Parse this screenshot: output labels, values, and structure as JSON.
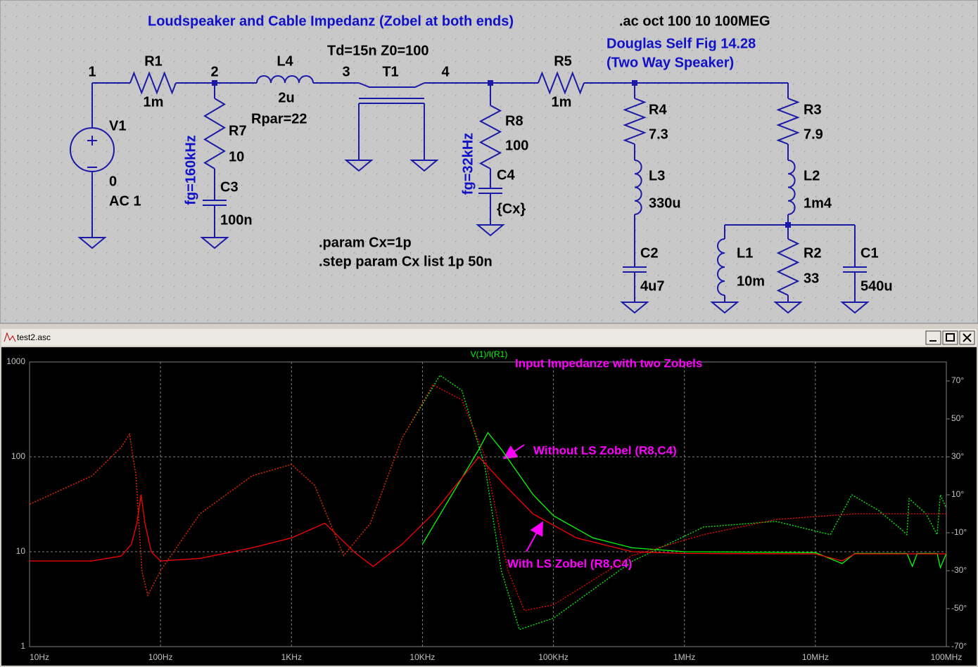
{
  "schematic": {
    "title": "Loudspeaker and Cable Impedanz (Zobel at both ends)",
    "analysis": ".ac oct 100 10 100MEG",
    "reference": [
      "Douglas Self Fig 14.28",
      "(Two Way Speaker)"
    ],
    "tline": "Td=15n Z0=100",
    "nodes": [
      "1",
      "2",
      "3",
      "4"
    ],
    "components": [
      {
        "ref": "R1",
        "value": "1m"
      },
      {
        "ref": "L4",
        "value": "2u",
        "extra": "Rpar=22"
      },
      {
        "ref": "T1"
      },
      {
        "ref": "R5",
        "value": "1m"
      },
      {
        "ref": "V1",
        "value": "0",
        "extra": "AC 1"
      },
      {
        "ref": "R7",
        "value": "10"
      },
      {
        "ref": "C3",
        "value": "100n"
      },
      {
        "ref": "R8",
        "value": "100"
      },
      {
        "ref": "C4",
        "value": "{Cx}"
      },
      {
        "ref": "R4",
        "value": "7.3"
      },
      {
        "ref": "L3",
        "value": "330u"
      },
      {
        "ref": "C2",
        "value": "4u7"
      },
      {
        "ref": "R3",
        "value": "7.9"
      },
      {
        "ref": "L2",
        "value": "1m4"
      },
      {
        "ref": "L1",
        "value": "10m"
      },
      {
        "ref": "R2",
        "value": "33"
      },
      {
        "ref": "C1",
        "value": "540u"
      }
    ],
    "zobel_labels": [
      "fg=160kHz",
      "fg=32kHz"
    ],
    "directives": [
      ".param Cx=1p",
      ".step param Cx list 1p 50n"
    ]
  },
  "window": {
    "title": "test2.asc"
  },
  "chart_data": {
    "type": "line",
    "trace_label": "V(1)/I(R1)",
    "title": "Input Impedanze with two Zobels",
    "annotations": [
      "Without LS Zobel (R8,C4)",
      "With LS Zobel (R8,C4)"
    ],
    "x_log": true,
    "y_log": true,
    "grid": true,
    "xlim": [
      10,
      100000000
    ],
    "ylim": [
      1,
      1000
    ],
    "y2lim": [
      -70,
      80
    ],
    "xticks": [
      {
        "value": 10,
        "label": "10Hz"
      },
      {
        "value": 100,
        "label": "100Hz"
      },
      {
        "value": 1000,
        "label": "1KHz"
      },
      {
        "value": 10000,
        "label": "10KHz"
      },
      {
        "value": 100000,
        "label": "100KHz"
      },
      {
        "value": 1000000,
        "label": "1MHz"
      },
      {
        "value": 10000000,
        "label": "10MHz"
      },
      {
        "value": 100000000,
        "label": "100MHz"
      }
    ],
    "yticks": [
      1,
      10,
      100,
      1000
    ],
    "y2ticks": [
      {
        "value": -70,
        "label": "-70°"
      },
      {
        "value": -50,
        "label": "-50°"
      },
      {
        "value": -30,
        "label": "-30°"
      },
      {
        "value": -10,
        "label": "-10°"
      },
      {
        "value": 10,
        "label": "10°"
      },
      {
        "value": 30,
        "label": "30°"
      },
      {
        "value": 50,
        "label": "50°"
      },
      {
        "value": 70,
        "label": "70°"
      }
    ],
    "series": [
      {
        "color": "#00ff00",
        "dash": true,
        "axis": "y2",
        "x": [
          10,
          30,
          50,
          58,
          65,
          72,
          80,
          100,
          200,
          500,
          1000,
          1500,
          2500,
          4000,
          7000,
          13600,
          20000,
          30000,
          40000,
          55000,
          100000,
          400000,
          1400000,
          5000000,
          13000000,
          19000000,
          30000000,
          45000000,
          50000000,
          52000000,
          70000000,
          85000000,
          90000000,
          100000000
        ],
        "values": [
          5,
          20,
          35,
          42,
          20,
          -30,
          -43,
          -30,
          0,
          20,
          26,
          15,
          -22,
          -5,
          40,
          73,
          65,
          25,
          -30,
          -61,
          -55,
          -25,
          -7,
          -4,
          -11,
          10,
          2,
          -8,
          -11,
          8,
          0,
          -11,
          10,
          3
        ]
      },
      {
        "color": "#00ff00",
        "dash": false,
        "axis": "y",
        "x": [
          10000,
          20000,
          27000,
          31600,
          40000,
          70000,
          100000,
          200000,
          400000,
          1000000,
          10000000,
          16000000,
          20000000,
          50000000,
          55000000,
          60000000,
          85000000,
          90000000,
          100000000
        ],
        "values": [
          12,
          60,
          120,
          180,
          120,
          40,
          24,
          14,
          11,
          10,
          9.8,
          7.5,
          9.6,
          9.6,
          7,
          9.6,
          9.6,
          6.8,
          9.6
        ]
      },
      {
        "color": "#ff0000",
        "dash": true,
        "axis": "y2",
        "x": [
          10,
          30,
          50,
          58,
          65,
          72,
          80,
          100,
          200,
          500,
          1000,
          1500,
          2500,
          4000,
          7000,
          12000,
          20000,
          30000,
          45000,
          60000,
          100000,
          400000,
          1400000,
          5000000,
          20000000,
          100000000
        ],
        "values": [
          5,
          20,
          35,
          42,
          20,
          -30,
          -43,
          -30,
          0,
          20,
          26,
          15,
          -22,
          -5,
          40,
          68,
          60,
          30,
          -30,
          -51,
          -48,
          -22,
          -11,
          -3,
          0,
          0
        ]
      },
      {
        "color": "#ff0000",
        "dash": false,
        "axis": "y",
        "x": [
          10,
          30,
          50,
          60,
          66,
          71,
          76,
          85,
          100,
          200,
          500,
          1000,
          1800,
          3000,
          4200,
          7000,
          12000,
          20000,
          27000,
          40000,
          70000,
          150000,
          400000,
          1000000,
          10000000,
          16000000,
          20000000,
          100000000
        ],
        "values": [
          8,
          8,
          9,
          12,
          20,
          40,
          20,
          10,
          8,
          8.5,
          11,
          14,
          20,
          10,
          7,
          12,
          25,
          60,
          100,
          55,
          25,
          14,
          10,
          9.6,
          9.5,
          8,
          9.5,
          9.5
        ]
      }
    ]
  }
}
